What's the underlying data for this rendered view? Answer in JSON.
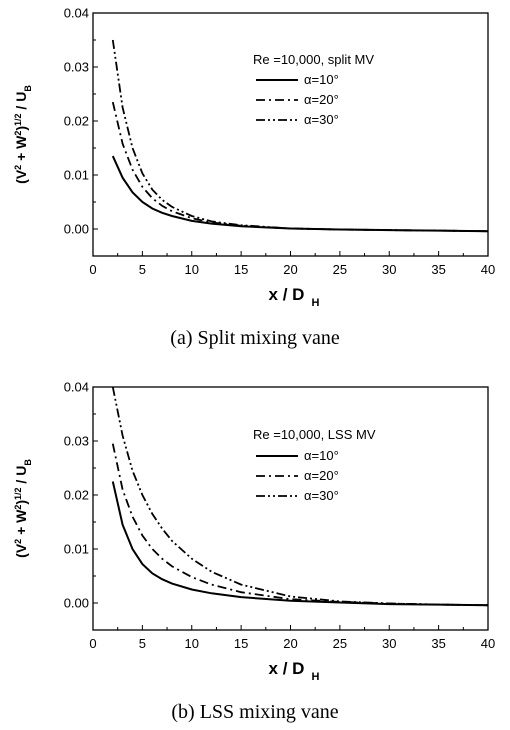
{
  "chart_data": [
    {
      "type": "line",
      "caption": "(a) Split mixing vane",
      "xlabel": "x / D",
      "xlabel_sub": "H",
      "ylabel_tex": "(V² + W²)^1/2 / U_B",
      "xlim": [
        0,
        40
      ],
      "ylim": [
        -0.005,
        0.04
      ],
      "xticks": [
        0,
        5,
        10,
        15,
        20,
        25,
        30,
        35,
        40
      ],
      "yticks": [
        "0.00",
        "0.01",
        "0.02",
        "0.03",
        "0.04"
      ],
      "legend_title": "Re =10,000, split MV",
      "series": [
        {
          "name": "α=10°",
          "style": "solid",
          "x": [
            2,
            3,
            4,
            5,
            6,
            7,
            8,
            10,
            12,
            15,
            20,
            25,
            30,
            35,
            40
          ],
          "y": [
            0.0135,
            0.0095,
            0.0068,
            0.005,
            0.0038,
            0.003,
            0.0024,
            0.0015,
            0.001,
            0.0005,
            0.0001,
            -0.0001,
            -0.0002,
            -0.0003,
            -0.0004
          ]
        },
        {
          "name": "α=20°",
          "style": "dashdot",
          "x": [
            2,
            3,
            4,
            5,
            6,
            7,
            8,
            10,
            12,
            15,
            20,
            25,
            30,
            35,
            40
          ],
          "y": [
            0.0235,
            0.0158,
            0.011,
            0.0078,
            0.0057,
            0.0043,
            0.0033,
            0.002,
            0.0012,
            0.0006,
            0.0001,
            -0.0001,
            -0.0002,
            -0.0003,
            -0.0004
          ]
        },
        {
          "name": "α=30°",
          "style": "dashdotdot",
          "x": [
            2,
            3,
            4,
            5,
            6,
            7,
            8,
            10,
            12,
            15,
            20,
            25,
            30,
            35,
            40
          ],
          "y": [
            0.035,
            0.0225,
            0.015,
            0.0103,
            0.0073,
            0.0054,
            0.0041,
            0.0024,
            0.0014,
            0.0007,
            0.0001,
            -0.0001,
            -0.0002,
            -0.0003,
            -0.0004
          ]
        }
      ]
    },
    {
      "type": "line",
      "caption": "(b) LSS mixing vane",
      "xlabel": "x / D",
      "xlabel_sub": "H",
      "ylabel_tex": "(V² + W²)^1/2 / U_B",
      "xlim": [
        0,
        40
      ],
      "ylim": [
        -0.005,
        0.04
      ],
      "xticks": [
        0,
        5,
        10,
        15,
        20,
        25,
        30,
        35,
        40
      ],
      "yticks": [
        "0.00",
        "0.01",
        "0.02",
        "0.03",
        "0.04"
      ],
      "legend_title": "Re =10,000, LSS MV",
      "series": [
        {
          "name": "α=10°",
          "style": "solid",
          "x": [
            2,
            3,
            4,
            5,
            6,
            7,
            8,
            10,
            12,
            15,
            20,
            25,
            30,
            35,
            40
          ],
          "y": [
            0.0225,
            0.0145,
            0.01,
            0.0072,
            0.0055,
            0.0044,
            0.0036,
            0.0025,
            0.0018,
            0.0011,
            0.0004,
            0.0001,
            -0.0002,
            -0.0003,
            -0.0004
          ]
        },
        {
          "name": "α=20°",
          "style": "dashdot",
          "x": [
            2,
            3,
            4,
            5,
            6,
            7,
            8,
            10,
            12,
            15,
            20,
            25,
            30,
            35,
            40
          ],
          "y": [
            0.0295,
            0.021,
            0.016,
            0.0125,
            0.01,
            0.0082,
            0.0068,
            0.0048,
            0.0034,
            0.002,
            0.0007,
            0.0002,
            -0.0001,
            -0.0003,
            -0.0004
          ]
        },
        {
          "name": "α=30°",
          "style": "dashdotdot",
          "x": [
            2,
            3,
            4,
            5,
            6,
            7,
            8,
            10,
            12,
            15,
            20,
            25,
            30,
            35,
            40
          ],
          "y": [
            0.04,
            0.031,
            0.0245,
            0.02,
            0.0165,
            0.0138,
            0.0115,
            0.0082,
            0.0058,
            0.0034,
            0.0012,
            0.0003,
            -0.0001,
            -0.0003,
            -0.0004
          ]
        }
      ]
    }
  ]
}
